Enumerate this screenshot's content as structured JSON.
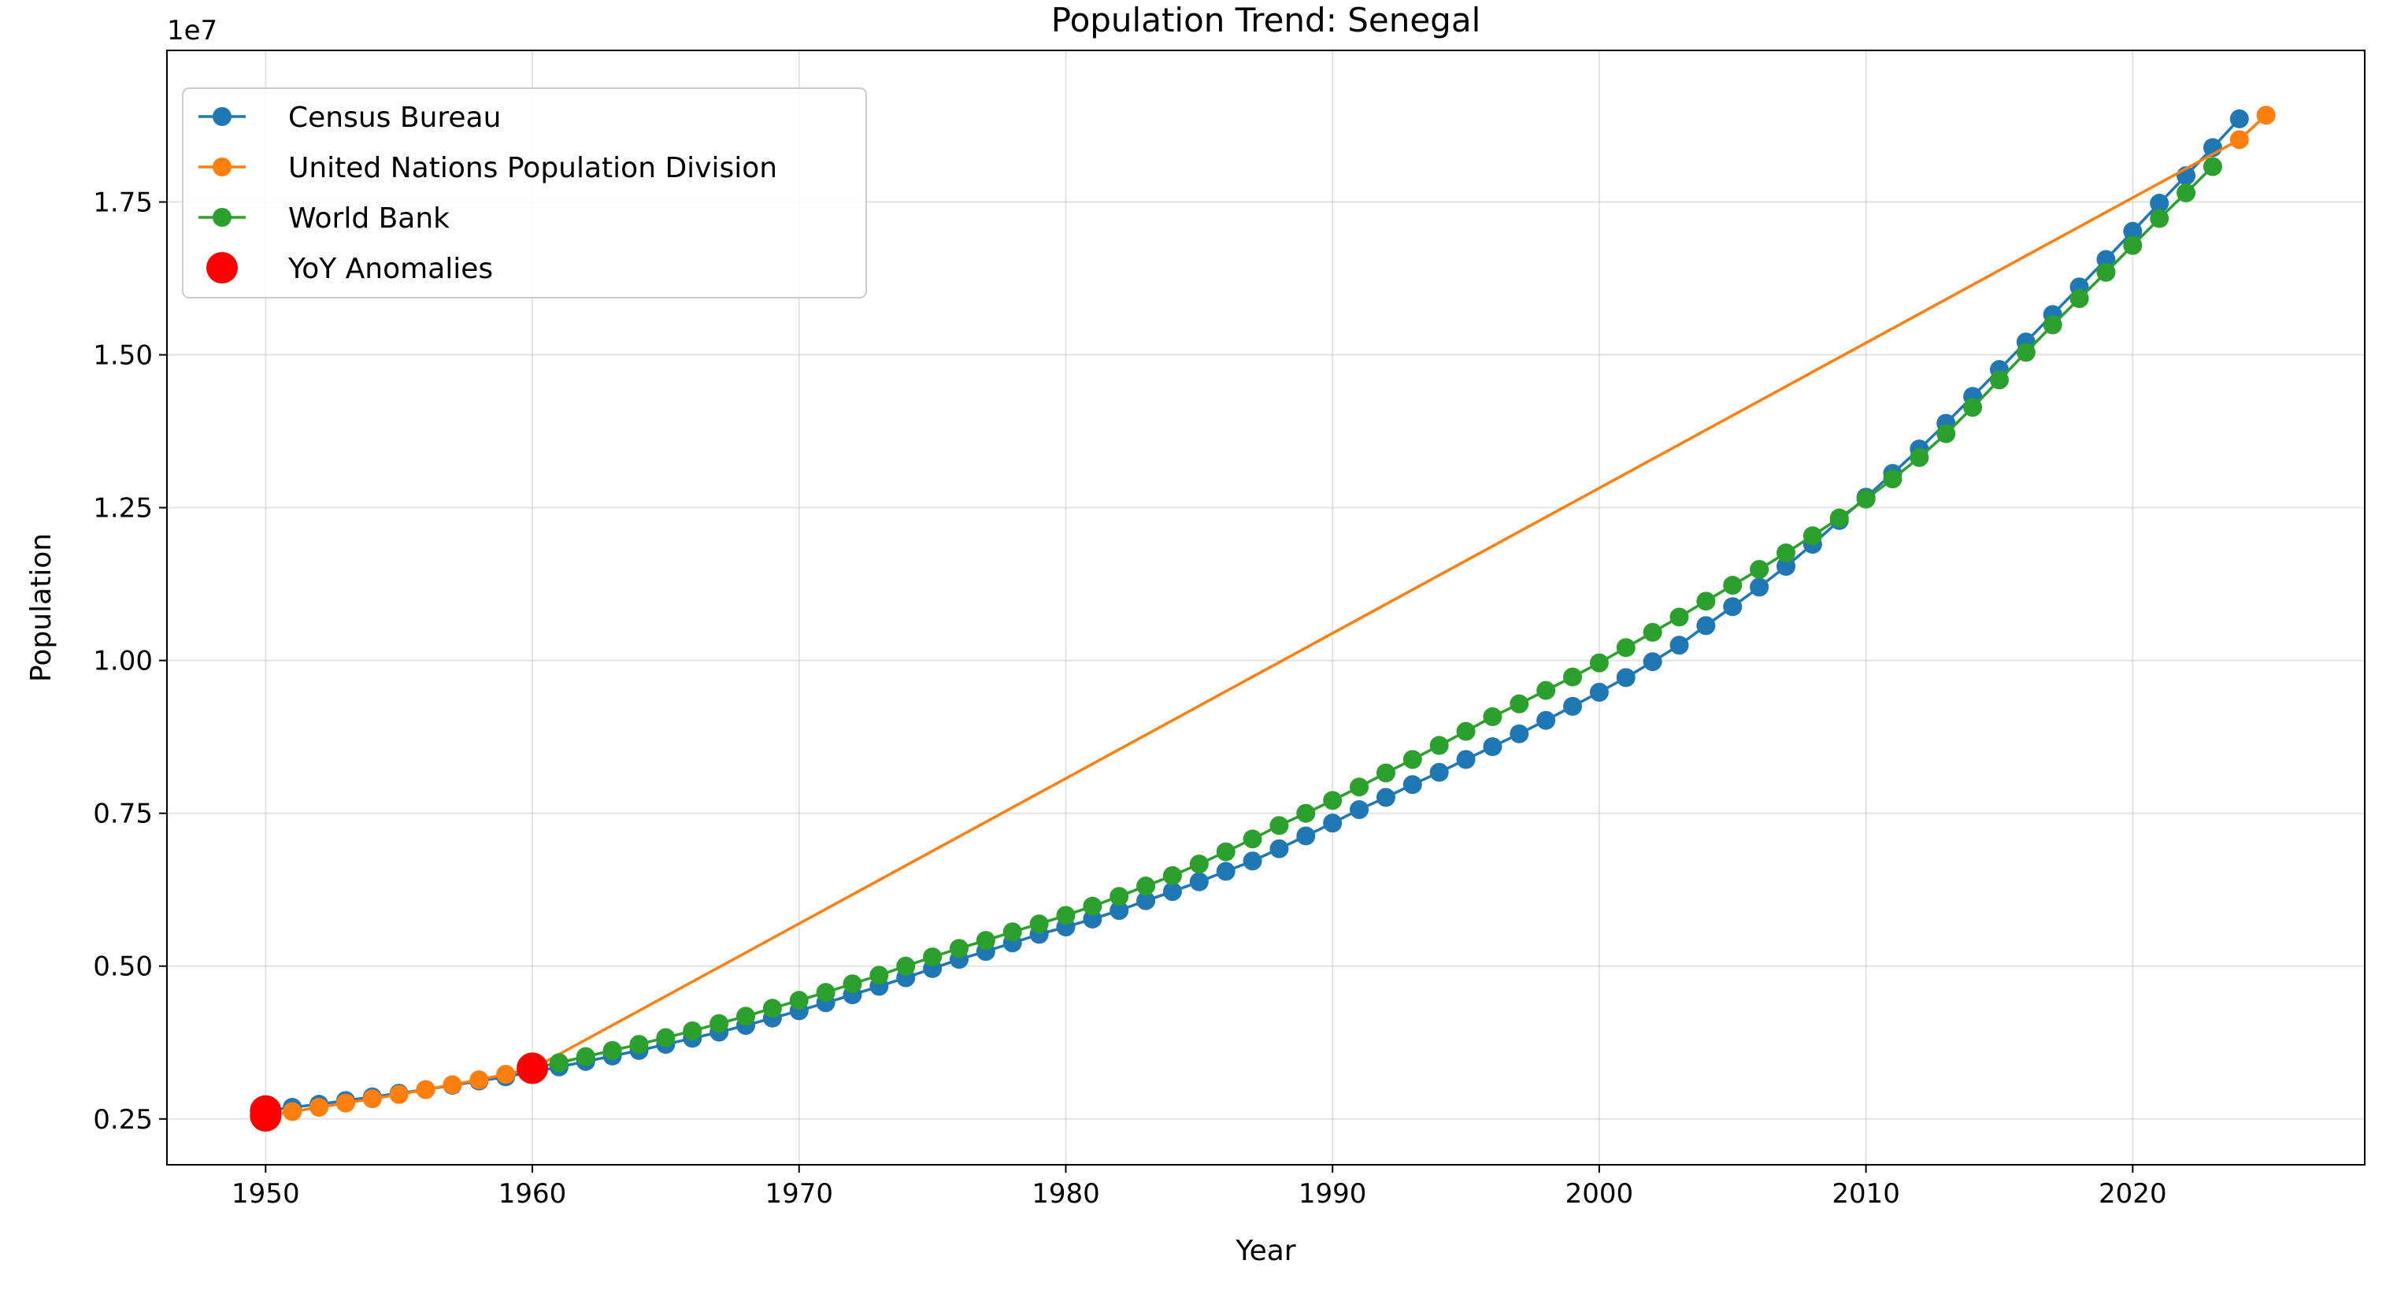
{
  "chart_data": {
    "type": "line",
    "title": "Population Trend: Senegal",
    "xlabel": "Year",
    "ylabel": "Population",
    "y_multiplier_label": "1e7",
    "xlim": [
      1946.3,
      2028.7
    ],
    "ylim": [
      1750000,
      19980000
    ],
    "x_ticks": [
      1950,
      1960,
      1970,
      1980,
      1990,
      2000,
      2010,
      2020
    ],
    "x_tick_labels": [
      "1950",
      "1960",
      "1970",
      "1980",
      "1990",
      "2000",
      "2010",
      "2020"
    ],
    "y_ticks": [
      2500000,
      5000000,
      7500000,
      10000000,
      12500000,
      15000000,
      17500000
    ],
    "y_tick_labels": [
      "0.25",
      "0.50",
      "0.75",
      "1.00",
      "1.25",
      "1.50",
      "1.75"
    ],
    "grid": true,
    "legend_position": "top-left",
    "series": [
      {
        "name": "Census Bureau",
        "color": "#1f77b4",
        "x": [
          1950,
          1951,
          1952,
          1953,
          1954,
          1955,
          1956,
          1957,
          1958,
          1959,
          1960,
          1961,
          1962,
          1963,
          1964,
          1965,
          1966,
          1967,
          1968,
          1969,
          1970,
          1971,
          1972,
          1973,
          1974,
          1975,
          1976,
          1977,
          1978,
          1979,
          1980,
          1981,
          1982,
          1983,
          1984,
          1985,
          1986,
          1987,
          1988,
          1989,
          1990,
          1991,
          1992,
          1993,
          1994,
          1995,
          1996,
          1997,
          1998,
          1999,
          2000,
          2001,
          2002,
          2003,
          2004,
          2005,
          2006,
          2007,
          2008,
          2009,
          2010,
          2011,
          2012,
          2013,
          2014,
          2015,
          2016,
          2017,
          2018,
          2019,
          2020,
          2021,
          2022,
          2023,
          2024
        ],
        "values": [
          2630000,
          2690000,
          2740000,
          2800000,
          2860000,
          2920000,
          2980000,
          3050000,
          3120000,
          3190000,
          3270000,
          3350000,
          3440000,
          3530000,
          3620000,
          3720000,
          3820000,
          3920000,
          4030000,
          4150000,
          4270000,
          4400000,
          4530000,
          4670000,
          4810000,
          4960000,
          5110000,
          5240000,
          5380000,
          5520000,
          5640000,
          5770000,
          5910000,
          6070000,
          6220000,
          6380000,
          6550000,
          6720000,
          6920000,
          7130000,
          7340000,
          7560000,
          7760000,
          7970000,
          8170000,
          8380000,
          8590000,
          8800000,
          9020000,
          9250000,
          9480000,
          9720000,
          9980000,
          10250000,
          10570000,
          10880000,
          11200000,
          11540000,
          11900000,
          12290000,
          12670000,
          13060000,
          13460000,
          13880000,
          14320000,
          14760000,
          15210000,
          15660000,
          16110000,
          16560000,
          17020000,
          17480000,
          17930000,
          18390000,
          18860000
        ]
      },
      {
        "name": "United Nations Population Division",
        "color": "#ff7f0e",
        "x": [
          1950,
          1951,
          1952,
          1953,
          1954,
          1955,
          1956,
          1957,
          1958,
          1959,
          1960,
          2024,
          2025
        ],
        "values": [
          2550000,
          2620000,
          2690000,
          2760000,
          2830000,
          2900000,
          2980000,
          3060000,
          3140000,
          3230000,
          3320000,
          18520000,
          18920000
        ]
      },
      {
        "name": "World Bank",
        "color": "#2ca02c",
        "x": [
          1960,
          1961,
          1962,
          1963,
          1964,
          1965,
          1966,
          1967,
          1968,
          1969,
          1970,
          1971,
          1972,
          1973,
          1974,
          1975,
          1976,
          1977,
          1978,
          1979,
          1980,
          1981,
          1982,
          1983,
          1984,
          1985,
          1986,
          1987,
          1988,
          1989,
          1990,
          1991,
          1992,
          1993,
          1994,
          1995,
          1996,
          1997,
          1998,
          1999,
          2000,
          2001,
          2002,
          2003,
          2004,
          2005,
          2006,
          2007,
          2008,
          2009,
          2010,
          2011,
          2012,
          2013,
          2014,
          2015,
          2016,
          2017,
          2018,
          2019,
          2020,
          2021,
          2022,
          2023
        ],
        "values": [
          3330000,
          3420000,
          3520000,
          3620000,
          3720000,
          3830000,
          3940000,
          4060000,
          4180000,
          4310000,
          4440000,
          4570000,
          4710000,
          4850000,
          5000000,
          5150000,
          5290000,
          5420000,
          5560000,
          5690000,
          5830000,
          5980000,
          6140000,
          6310000,
          6480000,
          6670000,
          6870000,
          7080000,
          7300000,
          7500000,
          7710000,
          7930000,
          8160000,
          8380000,
          8610000,
          8840000,
          9080000,
          9290000,
          9510000,
          9730000,
          9960000,
          10210000,
          10460000,
          10710000,
          10970000,
          11230000,
          11490000,
          11760000,
          12040000,
          12330000,
          12640000,
          12970000,
          13320000,
          13710000,
          14140000,
          14590000,
          15040000,
          15490000,
          15920000,
          16350000,
          16790000,
          17230000,
          17650000,
          18080000
        ]
      },
      {
        "name": "YoY Anomalies",
        "color": "#ff0000",
        "x": [
          1950,
          1950,
          1960
        ],
        "values": [
          2630000,
          2550000,
          3330000
        ]
      }
    ]
  }
}
